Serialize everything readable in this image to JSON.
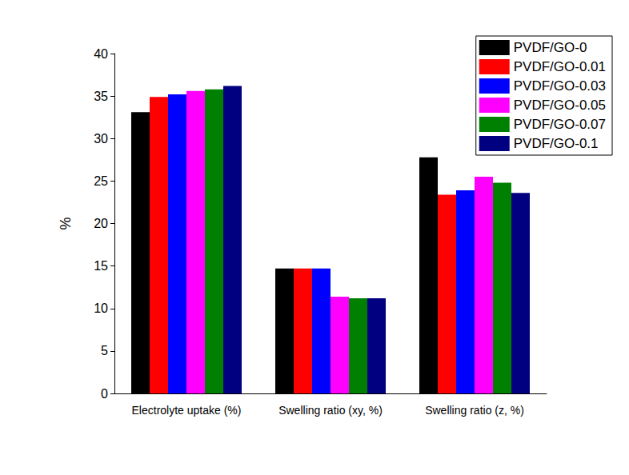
{
  "chart_data": {
    "type": "bar",
    "y_label": "%",
    "categories": [
      "Electrolyte uptake (%)",
      "Swelling ratio (xy, %)",
      "Swelling ratio (z, %)"
    ],
    "series": [
      {
        "name": "PVDF/GO-0",
        "color": "#000000",
        "values": [
          33.1,
          14.7,
          27.8
        ]
      },
      {
        "name": "PVDF/GO-0.01",
        "color": "#ff0000",
        "values": [
          34.9,
          14.7,
          23.4
        ]
      },
      {
        "name": "PVDF/GO-0.03",
        "color": "#0000ff",
        "values": [
          35.2,
          14.7,
          23.9
        ]
      },
      {
        "name": "PVDF/GO-0.05",
        "color": "#ff00ff",
        "values": [
          35.6,
          11.4,
          25.5
        ]
      },
      {
        "name": "PVDF/GO-0.07",
        "color": "#008000",
        "values": [
          35.8,
          11.2,
          24.8
        ]
      },
      {
        "name": "PVDF/GO-0.1",
        "color": "#000080",
        "values": [
          36.2,
          11.2,
          23.6
        ]
      }
    ],
    "ylim": [
      0,
      40
    ],
    "yticks": [
      0,
      5,
      10,
      15,
      20,
      25,
      30,
      35,
      40
    ],
    "grid": false,
    "legend": "upper right"
  }
}
